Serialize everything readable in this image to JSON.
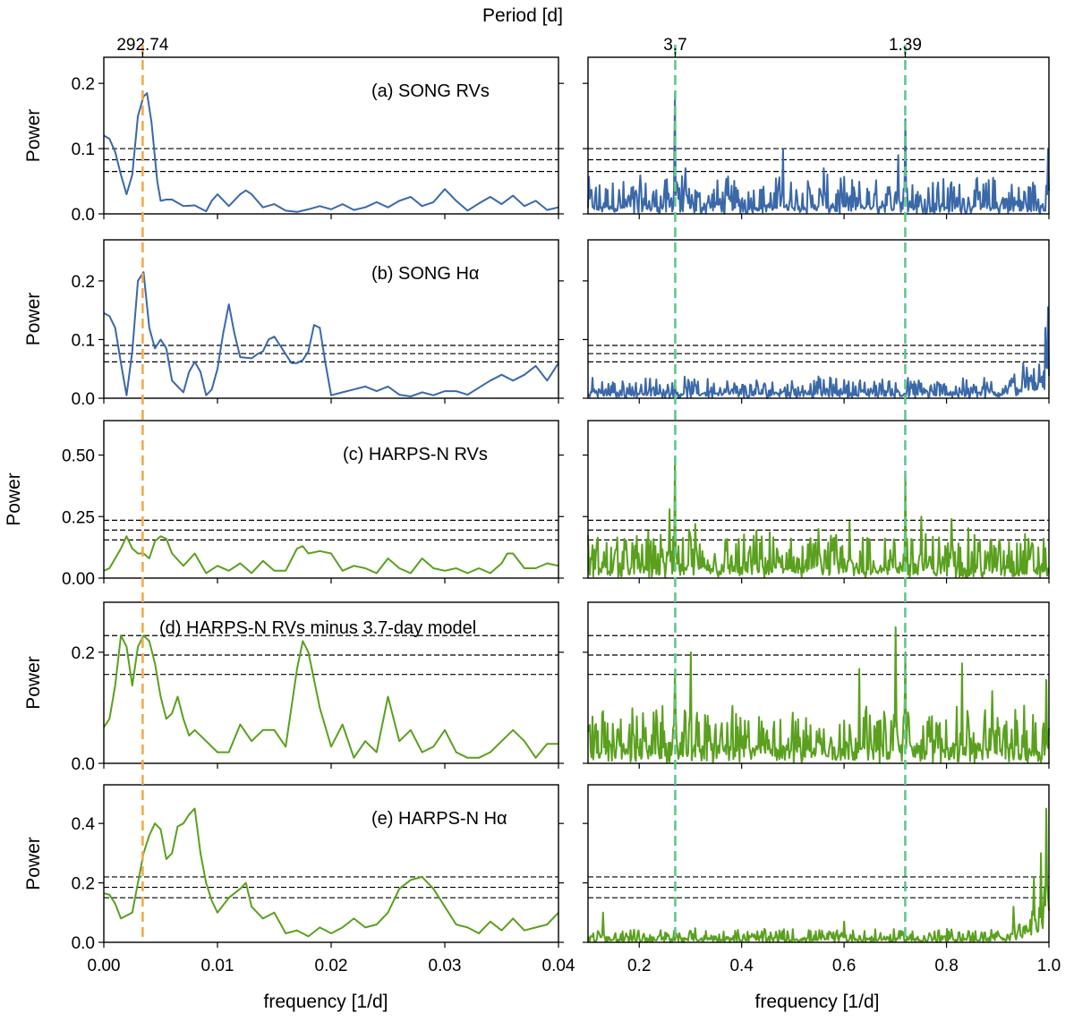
{
  "figure": {
    "top_axis_label": "Period [d]",
    "xlabel": "frequency [1/d]",
    "ylabel": "Power"
  },
  "markers": {
    "left": [
      {
        "period_label": "292.74",
        "frequency": 0.003416,
        "color": "#f5a94a"
      }
    ],
    "right": [
      {
        "period_label": "3.7",
        "frequency": 0.2703,
        "color": "#5fc98a"
      },
      {
        "period_label": "1.39",
        "frequency": 0.7194,
        "color": "#5fc98a"
      }
    ]
  },
  "axes": {
    "left": {
      "xlim": [
        0.0,
        0.04
      ],
      "xticks": [
        "0.00",
        "0.01",
        "0.02",
        "0.03",
        "0.04"
      ],
      "xtick_values": [
        0.0,
        0.01,
        0.02,
        0.03,
        0.04
      ]
    },
    "right": {
      "xlim": [
        0.1,
        1.0
      ],
      "xticks": [
        "0.2",
        "0.4",
        "0.6",
        "0.8",
        "1.0"
      ],
      "xtick_values": [
        0.2,
        0.4,
        0.6,
        0.8,
        1.0
      ]
    }
  },
  "chart_data": [
    {
      "type": "line",
      "panel": "a",
      "title": "(a) SONG RVs",
      "series_color": "#3a68a8",
      "ylim": [
        0,
        0.24
      ],
      "yticks": [
        "0.0",
        "0.1",
        "0.2"
      ],
      "ytick_values": [
        0.0,
        0.1,
        0.2
      ],
      "thresholds": [
        0.1,
        0.083,
        0.065
      ],
      "left_curve": {
        "x": [
          0.0,
          0.0005,
          0.001,
          0.0015,
          0.002,
          0.0025,
          0.003,
          0.0035,
          0.0038,
          0.0042,
          0.0047,
          0.005,
          0.0055,
          0.006,
          0.007,
          0.008,
          0.009,
          0.0095,
          0.01,
          0.011,
          0.012,
          0.0125,
          0.013,
          0.014,
          0.015,
          0.016,
          0.017,
          0.018,
          0.019,
          0.02,
          0.021,
          0.022,
          0.023,
          0.024,
          0.025,
          0.026,
          0.027,
          0.028,
          0.029,
          0.03,
          0.031,
          0.032,
          0.033,
          0.034,
          0.035,
          0.036,
          0.037,
          0.038,
          0.039,
          0.04
        ],
        "y": [
          0.12,
          0.115,
          0.095,
          0.06,
          0.03,
          0.06,
          0.15,
          0.18,
          0.185,
          0.14,
          0.05,
          0.02,
          0.022,
          0.022,
          0.012,
          0.013,
          0.004,
          0.02,
          0.03,
          0.012,
          0.03,
          0.036,
          0.03,
          0.01,
          0.015,
          0.005,
          0.003,
          0.007,
          0.012,
          0.007,
          0.015,
          0.006,
          0.01,
          0.018,
          0.01,
          0.02,
          0.026,
          0.012,
          0.018,
          0.038,
          0.02,
          0.005,
          0.016,
          0.026,
          0.015,
          0.028,
          0.012,
          0.02,
          0.006,
          0.01
        ]
      },
      "right_series": {
        "noise_base": 0.012,
        "noise_amp": 0.05,
        "tail_boost": 0.0,
        "spikes": [
          [
            0.2703,
            0.185
          ],
          [
            0.7194,
            0.145
          ],
          [
            0.48,
            0.1
          ],
          [
            0.998,
            0.1
          ],
          [
            0.29,
            0.07
          ],
          [
            0.705,
            0.09
          ],
          [
            0.56,
            0.07
          ]
        ]
      }
    },
    {
      "type": "line",
      "panel": "b",
      "title": "(b) SONG Hα",
      "series_color": "#3a68a8",
      "ylim": [
        0,
        0.27
      ],
      "yticks": [
        "0.0",
        "0.1",
        "0.2"
      ],
      "ytick_values": [
        0.0,
        0.1,
        0.2
      ],
      "thresholds": [
        0.09,
        0.076,
        0.062
      ],
      "left_curve": {
        "x": [
          0.0,
          0.0005,
          0.001,
          0.0015,
          0.002,
          0.0025,
          0.003,
          0.0035,
          0.004,
          0.0045,
          0.005,
          0.0055,
          0.006,
          0.0065,
          0.007,
          0.0075,
          0.008,
          0.0085,
          0.009,
          0.0095,
          0.01,
          0.0105,
          0.011,
          0.0115,
          0.012,
          0.013,
          0.0135,
          0.014,
          0.0145,
          0.015,
          0.0155,
          0.016,
          0.0165,
          0.017,
          0.0175,
          0.018,
          0.0185,
          0.019,
          0.0195,
          0.02,
          0.021,
          0.022,
          0.023,
          0.024,
          0.025,
          0.026,
          0.027,
          0.028,
          0.029,
          0.03,
          0.031,
          0.032,
          0.033,
          0.034,
          0.035,
          0.036,
          0.037,
          0.038,
          0.039,
          0.04
        ],
        "y": [
          0.145,
          0.14,
          0.12,
          0.06,
          0.005,
          0.08,
          0.2,
          0.215,
          0.12,
          0.085,
          0.1,
          0.085,
          0.03,
          0.02,
          0.01,
          0.045,
          0.062,
          0.045,
          0.005,
          0.015,
          0.05,
          0.11,
          0.16,
          0.11,
          0.07,
          0.068,
          0.075,
          0.08,
          0.1,
          0.105,
          0.09,
          0.075,
          0.06,
          0.06,
          0.065,
          0.08,
          0.125,
          0.12,
          0.06,
          0.005,
          0.01,
          0.015,
          0.02,
          0.012,
          0.02,
          0.006,
          0.003,
          0.01,
          0.005,
          0.012,
          0.012,
          0.006,
          0.018,
          0.03,
          0.04,
          0.03,
          0.04,
          0.055,
          0.03,
          0.06
        ]
      },
      "right_series": {
        "noise_base": 0.01,
        "noise_amp": 0.03,
        "tail_boost": 0.05,
        "spikes": [
          [
            0.998,
            0.155
          ],
          [
            0.993,
            0.12
          ],
          [
            0.95,
            0.06
          ]
        ]
      }
    },
    {
      "type": "line",
      "panel": "c",
      "title": "(c) HARPS-N RVs",
      "series_color": "#5aa01e",
      "ylim": [
        0,
        0.64
      ],
      "yticks": [
        "0.00",
        "0.25",
        "0.50"
      ],
      "ytick_values": [
        0.0,
        0.25,
        0.5
      ],
      "thresholds": [
        0.235,
        0.195,
        0.155
      ],
      "left_curve": {
        "x": [
          0.0,
          0.0005,
          0.001,
          0.0015,
          0.002,
          0.0025,
          0.003,
          0.0035,
          0.004,
          0.0045,
          0.005,
          0.0055,
          0.006,
          0.007,
          0.008,
          0.009,
          0.01,
          0.011,
          0.012,
          0.013,
          0.014,
          0.015,
          0.016,
          0.017,
          0.0175,
          0.018,
          0.019,
          0.02,
          0.021,
          0.022,
          0.023,
          0.024,
          0.025,
          0.026,
          0.027,
          0.028,
          0.029,
          0.03,
          0.031,
          0.032,
          0.033,
          0.034,
          0.035,
          0.0355,
          0.036,
          0.037,
          0.038,
          0.039,
          0.04
        ],
        "y": [
          0.03,
          0.04,
          0.08,
          0.12,
          0.17,
          0.12,
          0.1,
          0.1,
          0.08,
          0.15,
          0.17,
          0.16,
          0.1,
          0.05,
          0.1,
          0.02,
          0.05,
          0.03,
          0.06,
          0.02,
          0.07,
          0.03,
          0.03,
          0.12,
          0.13,
          0.1,
          0.11,
          0.1,
          0.03,
          0.05,
          0.04,
          0.02,
          0.08,
          0.04,
          0.02,
          0.08,
          0.04,
          0.03,
          0.04,
          0.02,
          0.04,
          0.02,
          0.06,
          0.1,
          0.1,
          0.04,
          0.04,
          0.06,
          0.05
        ]
      },
      "right_series": {
        "noise_base": 0.04,
        "noise_amp": 0.17,
        "tail_boost": 0.0,
        "spikes": [
          [
            0.2703,
            0.49
          ],
          [
            0.7194,
            0.42
          ],
          [
            0.26,
            0.28
          ],
          [
            0.75,
            0.25
          ],
          [
            0.81,
            0.24
          ],
          [
            0.31,
            0.22
          ],
          [
            0.55,
            0.2
          ],
          [
            0.61,
            0.23
          ]
        ]
      }
    },
    {
      "type": "line",
      "panel": "d",
      "title": "(d) HARPS-N RVs minus 3.7-day model",
      "series_color": "#5aa01e",
      "ylim": [
        0,
        0.29
      ],
      "yticks": [
        "0.0",
        "0.2"
      ],
      "ytick_values": [
        0.0,
        0.2
      ],
      "thresholds": [
        0.23,
        0.195,
        0.16
      ],
      "left_curve": {
        "x": [
          0.0,
          0.0005,
          0.001,
          0.0015,
          0.002,
          0.0025,
          0.003,
          0.0035,
          0.004,
          0.0045,
          0.005,
          0.0055,
          0.006,
          0.0065,
          0.007,
          0.0075,
          0.008,
          0.009,
          0.01,
          0.011,
          0.012,
          0.013,
          0.014,
          0.015,
          0.016,
          0.017,
          0.0175,
          0.018,
          0.019,
          0.02,
          0.021,
          0.022,
          0.023,
          0.024,
          0.025,
          0.026,
          0.027,
          0.028,
          0.029,
          0.03,
          0.031,
          0.032,
          0.033,
          0.034,
          0.035,
          0.036,
          0.037,
          0.038,
          0.039,
          0.04
        ],
        "y": [
          0.065,
          0.08,
          0.14,
          0.23,
          0.21,
          0.14,
          0.21,
          0.23,
          0.22,
          0.18,
          0.12,
          0.08,
          0.09,
          0.12,
          0.08,
          0.05,
          0.06,
          0.04,
          0.02,
          0.02,
          0.07,
          0.04,
          0.06,
          0.06,
          0.03,
          0.17,
          0.22,
          0.2,
          0.1,
          0.03,
          0.07,
          0.01,
          0.04,
          0.02,
          0.12,
          0.04,
          0.06,
          0.02,
          0.03,
          0.06,
          0.02,
          0.01,
          0.01,
          0.02,
          0.04,
          0.06,
          0.04,
          0.01,
          0.035,
          0.035
        ]
      },
      "right_series": {
        "noise_base": 0.03,
        "noise_amp": 0.08,
        "tail_boost": 0.0,
        "spikes": [
          [
            0.7,
            0.245
          ],
          [
            0.72,
            0.2
          ],
          [
            0.27,
            0.16
          ],
          [
            0.3,
            0.2
          ],
          [
            0.63,
            0.17
          ],
          [
            0.83,
            0.18
          ],
          [
            0.89,
            0.13
          ],
          [
            0.995,
            0.15
          ]
        ]
      }
    },
    {
      "type": "line",
      "panel": "e",
      "title": "(e) HARPS-N Hα",
      "series_color": "#5aa01e",
      "ylim": [
        0,
        0.53
      ],
      "yticks": [
        "0.0",
        "0.2",
        "0.4"
      ],
      "ytick_values": [
        0.0,
        0.2,
        0.4
      ],
      "thresholds": [
        0.22,
        0.185,
        0.15
      ],
      "left_curve": {
        "x": [
          0.0,
          0.0005,
          0.001,
          0.0015,
          0.002,
          0.0025,
          0.003,
          0.0035,
          0.004,
          0.0045,
          0.005,
          0.0055,
          0.006,
          0.0065,
          0.007,
          0.0075,
          0.008,
          0.0085,
          0.009,
          0.0095,
          0.01,
          0.011,
          0.012,
          0.0125,
          0.013,
          0.014,
          0.015,
          0.016,
          0.017,
          0.018,
          0.019,
          0.02,
          0.021,
          0.022,
          0.023,
          0.024,
          0.025,
          0.026,
          0.027,
          0.028,
          0.029,
          0.03,
          0.031,
          0.032,
          0.033,
          0.034,
          0.035,
          0.036,
          0.037,
          0.038,
          0.039,
          0.04
        ],
        "y": [
          0.165,
          0.16,
          0.13,
          0.08,
          0.09,
          0.1,
          0.2,
          0.3,
          0.36,
          0.4,
          0.38,
          0.28,
          0.3,
          0.39,
          0.4,
          0.43,
          0.45,
          0.3,
          0.2,
          0.14,
          0.1,
          0.15,
          0.18,
          0.2,
          0.12,
          0.08,
          0.1,
          0.03,
          0.04,
          0.02,
          0.05,
          0.03,
          0.05,
          0.08,
          0.05,
          0.06,
          0.1,
          0.18,
          0.21,
          0.22,
          0.18,
          0.12,
          0.06,
          0.05,
          0.03,
          0.07,
          0.04,
          0.08,
          0.04,
          0.05,
          0.06,
          0.1
        ]
      },
      "right_series": {
        "noise_base": 0.01,
        "noise_amp": 0.04,
        "tail_boost": 0.14,
        "spikes": [
          [
            0.995,
            0.45
          ],
          [
            0.985,
            0.3
          ],
          [
            0.97,
            0.22
          ],
          [
            0.93,
            0.12
          ],
          [
            0.13,
            0.1
          ],
          [
            0.6,
            0.07
          ]
        ]
      }
    }
  ]
}
